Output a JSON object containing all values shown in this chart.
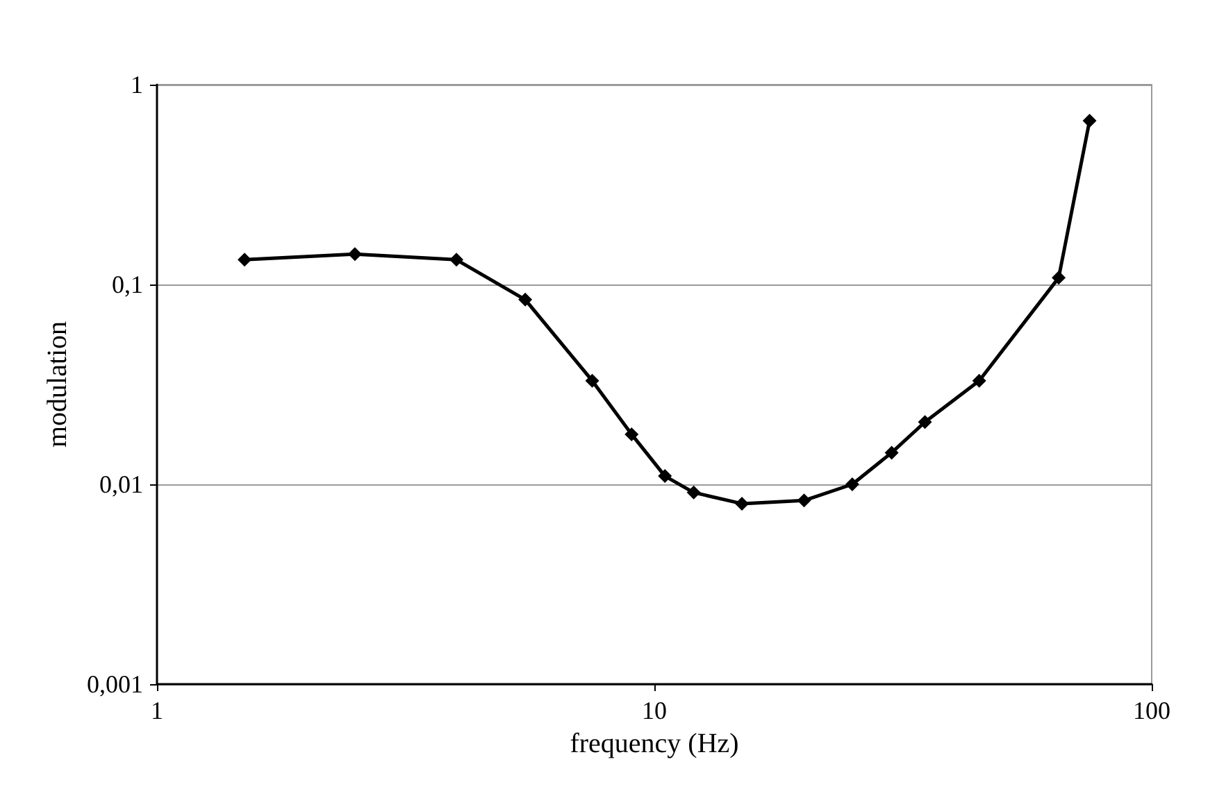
{
  "chart_data": {
    "type": "line",
    "xlabel": "frequency (Hz)",
    "ylabel": "modulation",
    "log": "xy",
    "grid": "y",
    "marker": "diamond",
    "line_style": "solid",
    "xlim": [
      1,
      100
    ],
    "xticks": [
      1,
      10,
      100
    ],
    "ylim": [
      0.001,
      1
    ],
    "yticks": [
      {
        "value": 0.001,
        "label": "0,001"
      },
      {
        "value": 0.01,
        "label": "0,01"
      },
      {
        "value": 0.1,
        "label": "0,1"
      },
      {
        "value": 1,
        "label": "1"
      }
    ],
    "series": [
      {
        "color": "#000000",
        "x": [
          1.5,
          2.5,
          4,
          5.5,
          7.5,
          9,
          10.5,
          12,
          15,
          20,
          25,
          30,
          35,
          45,
          65,
          75
        ],
        "values": [
          0.133,
          0.142,
          0.133,
          0.084,
          0.033,
          0.0178,
          0.011,
          0.0091,
          0.008,
          0.0083,
          0.01,
          0.0144,
          0.0205,
          0.033,
          0.108,
          0.66
        ]
      }
    ]
  }
}
